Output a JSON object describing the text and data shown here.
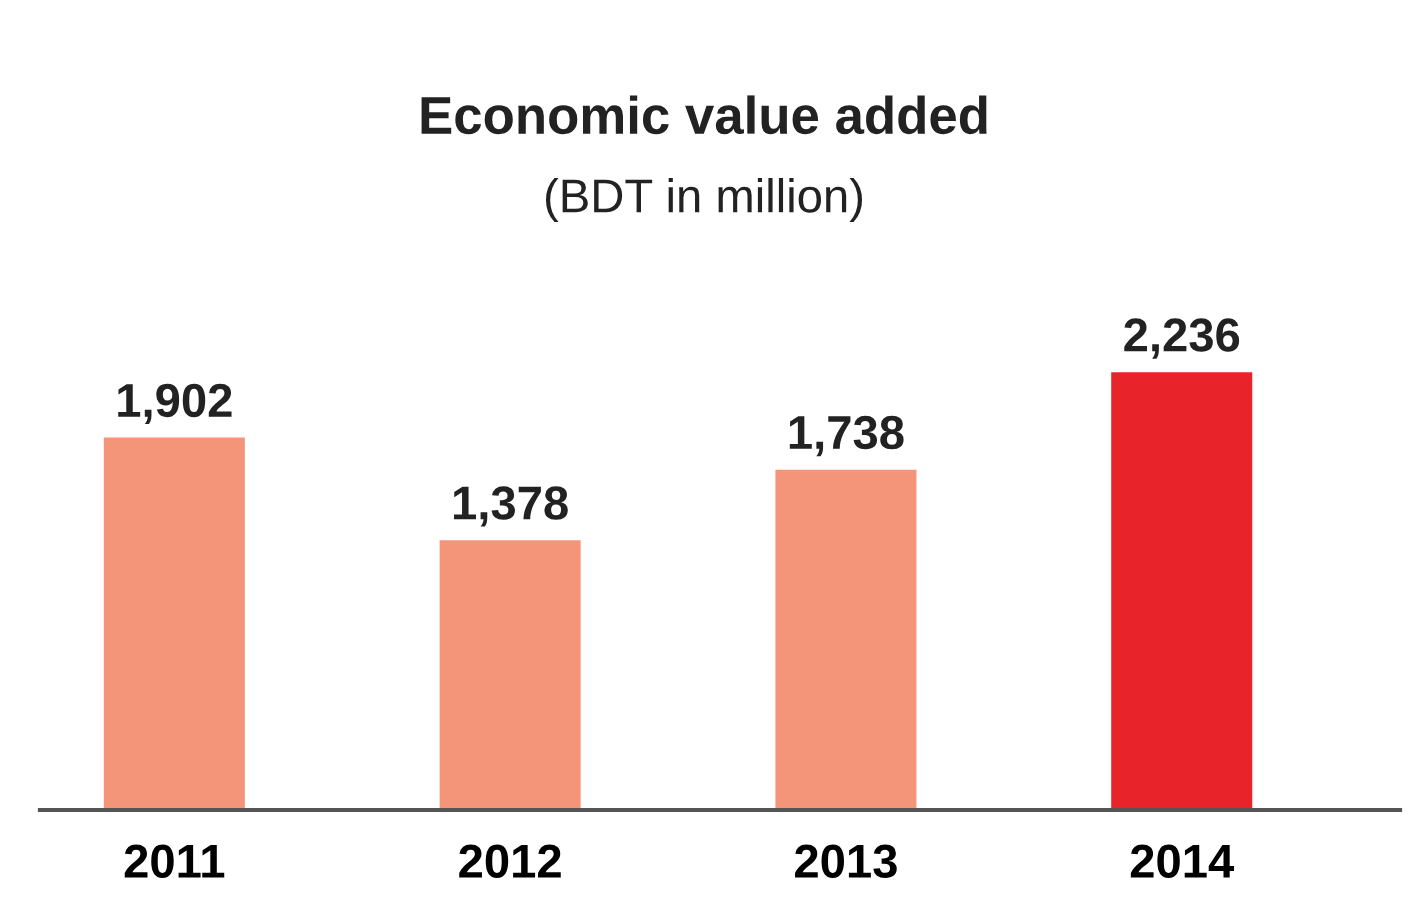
{
  "chart_data": {
    "type": "bar",
    "title": "Economic value added",
    "subtitle": "(BDT in million)",
    "categories": [
      "2011",
      "2012",
      "2013",
      "2014"
    ],
    "values": [
      1902,
      1378,
      1738,
      2236
    ],
    "colors": [
      "#f4957a",
      "#f4957a",
      "#f4957a",
      "#e8242a"
    ],
    "value_labels": [
      "1,902",
      "1,378",
      "1,738",
      "2,236"
    ],
    "grid": false,
    "legend": false,
    "tick_labels": "x"
  }
}
